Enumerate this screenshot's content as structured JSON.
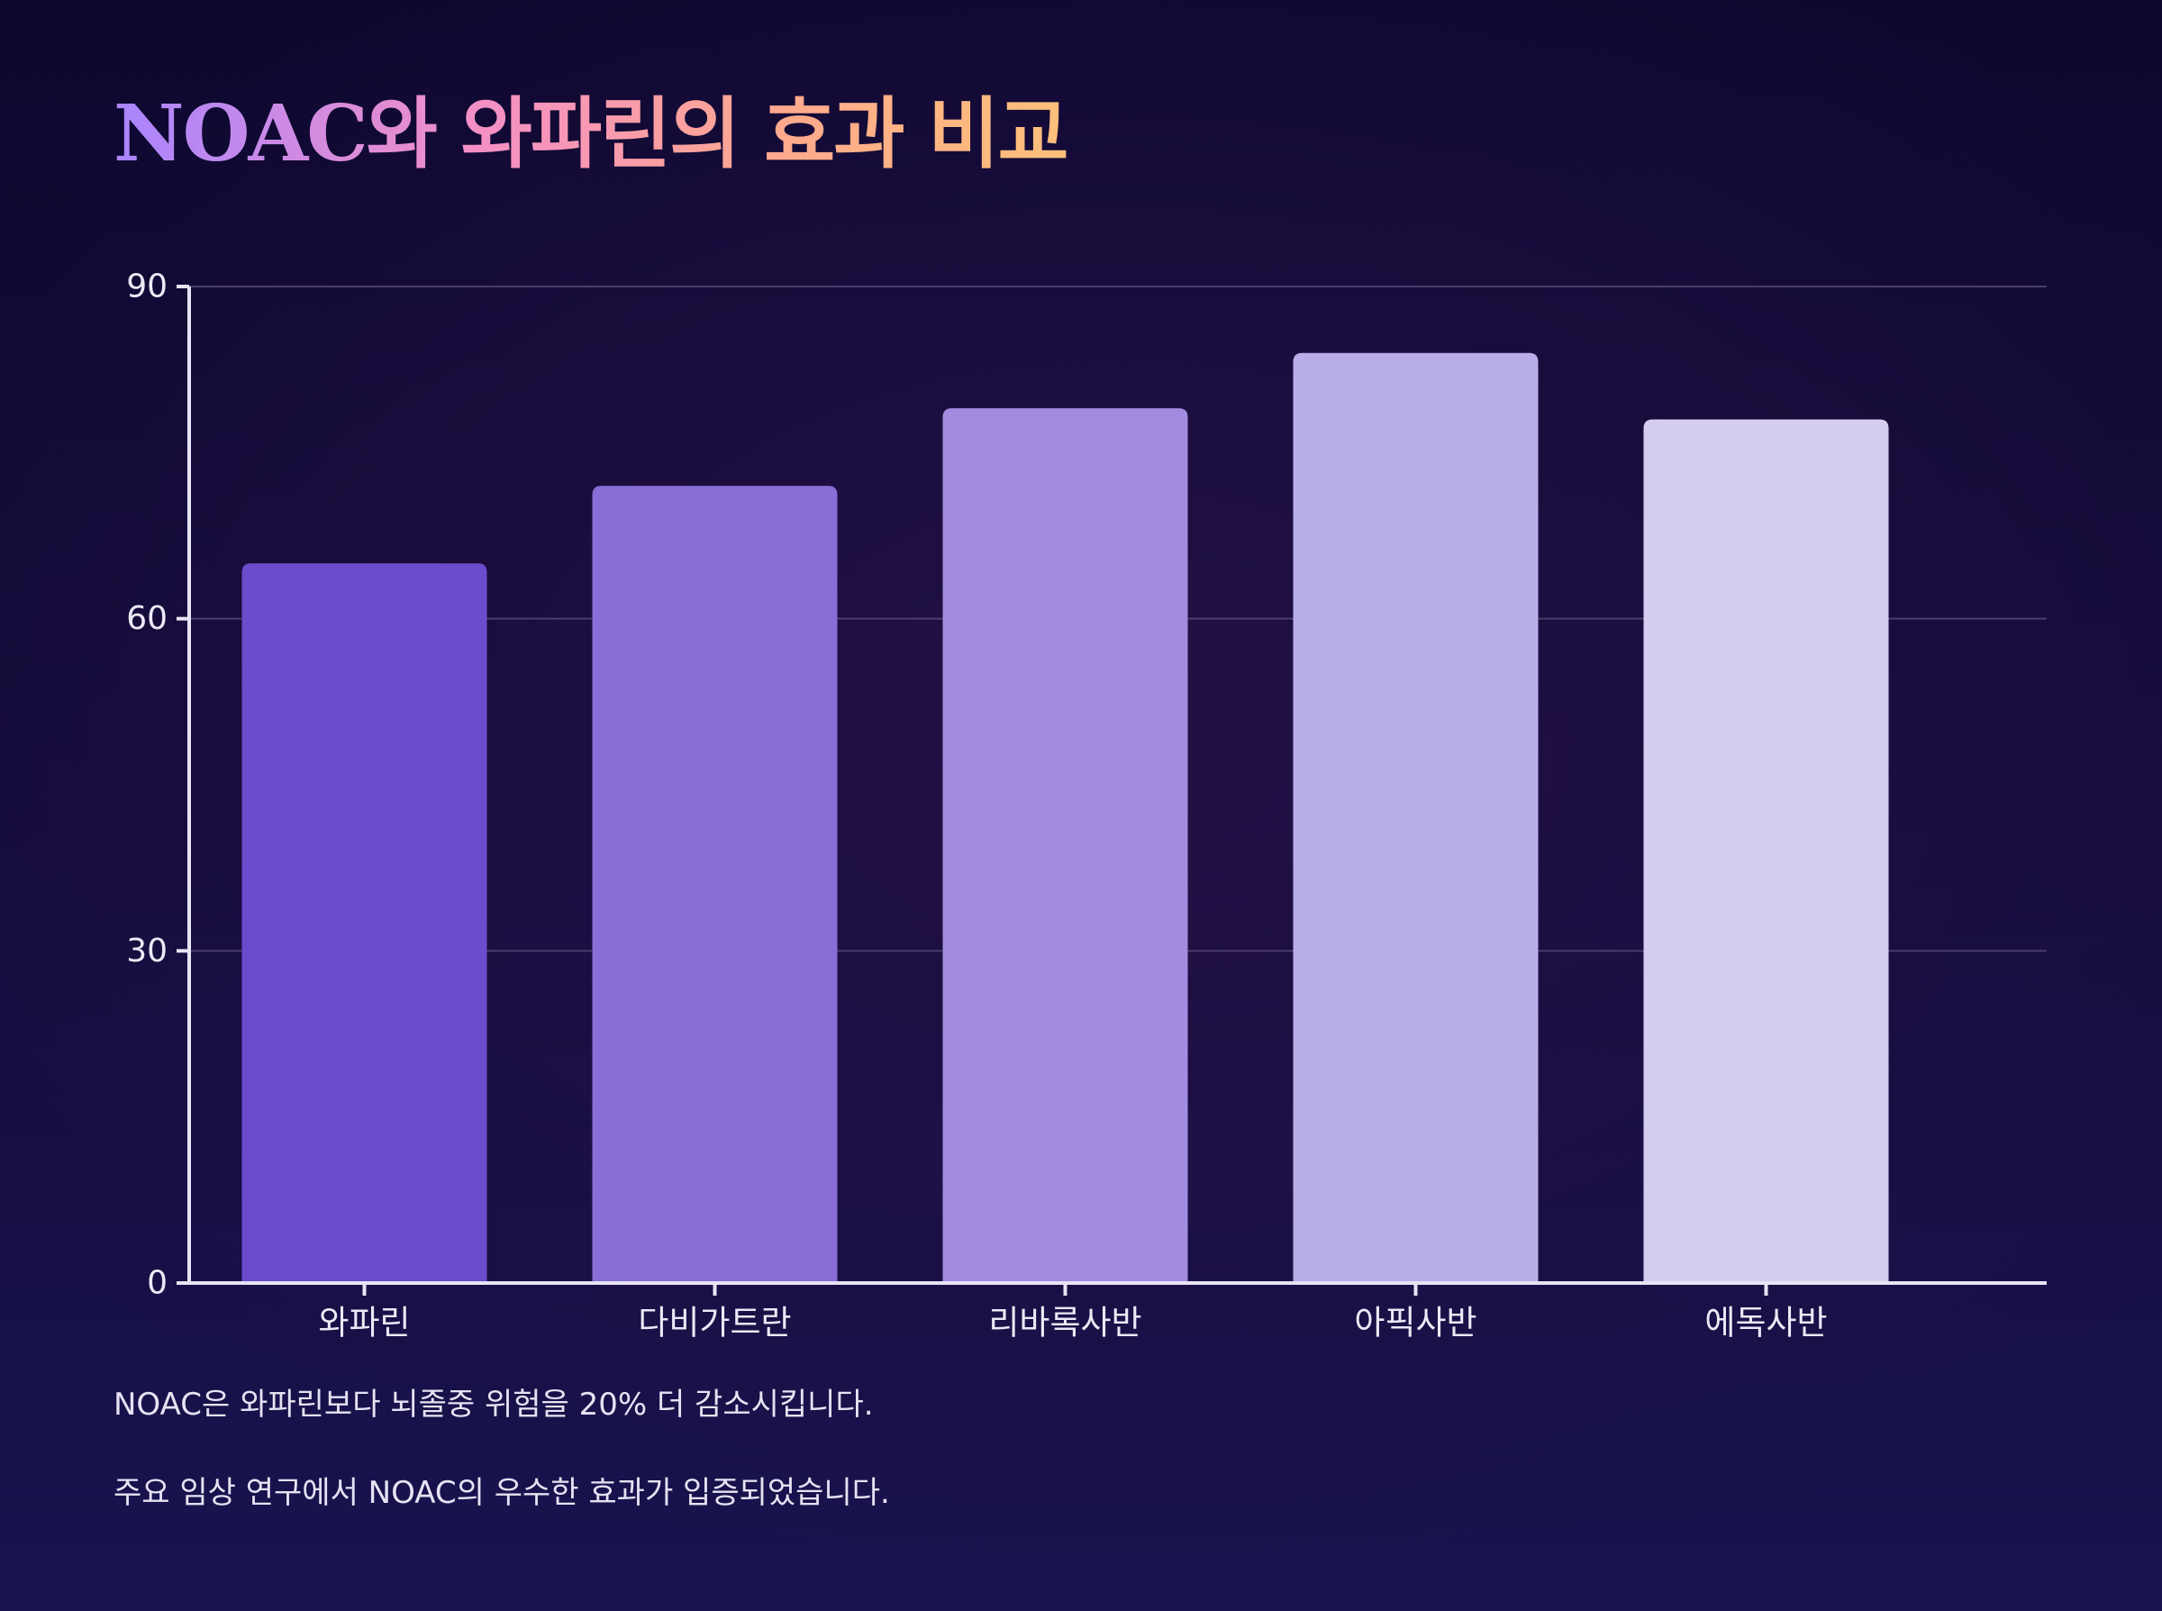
{
  "title": "NOAC와 와파린의 효과 비교",
  "colors": {
    "title_gradient": [
      "#a985ff",
      "#f48fc6",
      "#fea98d",
      "#fdc07a"
    ],
    "bars": [
      "#6b4ccc",
      "#886ed6",
      "#a28ce0",
      "#baaee8",
      "#d4cdf0"
    ],
    "axis": "#e8e4f4",
    "grid": "#4a3d6b"
  },
  "chart_data": {
    "type": "bar",
    "title": "",
    "xlabel": "",
    "ylabel": "",
    "categories": [
      "와파린",
      "다비가트란",
      "리바록사반",
      "아픽사반",
      "에독사반"
    ],
    "values": [
      65,
      72,
      79,
      84,
      78
    ],
    "ylim": [
      0,
      90
    ],
    "yticks": [
      0,
      30,
      60,
      90
    ],
    "grid": true,
    "legend": "none"
  },
  "notes": [
    "NOAC은 와파린보다 뇌졸중 위험을 20% 더 감소시킵니다.",
    "주요 임상 연구에서 NOAC의 우수한 효과가 입증되었습니다."
  ]
}
